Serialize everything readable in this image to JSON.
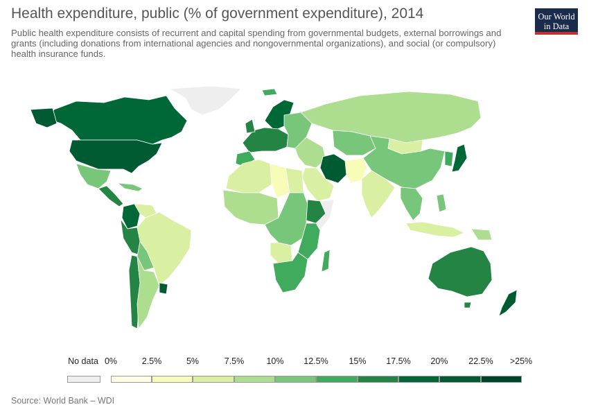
{
  "header": {
    "title": "Health expenditure, public (% of government expenditure), 2014",
    "subtitle": "Public health expenditure consists of recurrent and capital spending from governmental budgets, external borrowings and grants (including donations from international agencies and nongovernmental organizations), and social (or compulsory) health insurance funds."
  },
  "logo": {
    "line1": "Our World",
    "line2": "in Data"
  },
  "legend": {
    "no_data_label": "No data",
    "no_data_color": "#eeeeee",
    "bins": [
      {
        "label": "0%",
        "color": "#ffffe5"
      },
      {
        "label": "2.5%",
        "color": "#f7fcb9"
      },
      {
        "label": "5%",
        "color": "#d9f0a3"
      },
      {
        "label": "7.5%",
        "color": "#addd8e"
      },
      {
        "label": "10%",
        "color": "#78c679"
      },
      {
        "label": "12.5%",
        "color": "#41ab5d"
      },
      {
        "label": "15%",
        "color": "#238443"
      },
      {
        "label": "17.5%",
        "color": "#006837"
      },
      {
        "label": "20%",
        "color": "#005a32"
      },
      {
        "label": "22.5%",
        "color": "#004529"
      },
      {
        "label": ">25%",
        "color": ""
      }
    ]
  },
  "regions": [
    {
      "name": "Greenland",
      "color": "#eeeeee"
    },
    {
      "name": "Canada",
      "color": "#006837"
    },
    {
      "name": "United States",
      "color": "#005a32"
    },
    {
      "name": "Mexico",
      "color": "#78c679"
    },
    {
      "name": "Central America",
      "color": "#238443"
    },
    {
      "name": "Caribbean",
      "color": "#78c679"
    },
    {
      "name": "Colombia",
      "color": "#006837"
    },
    {
      "name": "Venezuela",
      "color": "#d9f0a3"
    },
    {
      "name": "Brazil",
      "color": "#d9f0a3"
    },
    {
      "name": "Peru",
      "color": "#238443"
    },
    {
      "name": "Bolivia",
      "color": "#78c679"
    },
    {
      "name": "Argentina",
      "color": "#addd8e"
    },
    {
      "name": "Chile",
      "color": "#238443"
    },
    {
      "name": "Uruguay",
      "color": "#005a32"
    },
    {
      "name": "Iceland",
      "color": "#41ab5d"
    },
    {
      "name": "Scandinavia",
      "color": "#006837"
    },
    {
      "name": "Western Europe",
      "color": "#238443"
    },
    {
      "name": "Iberia",
      "color": "#41ab5d"
    },
    {
      "name": "Eastern Europe",
      "color": "#78c679"
    },
    {
      "name": "Russia",
      "color": "#addd8e"
    },
    {
      "name": "Kazakhstan",
      "color": "#78c679"
    },
    {
      "name": "Mongolia",
      "color": "#d9f0a3"
    },
    {
      "name": "China",
      "color": "#78c679"
    },
    {
      "name": "Korea",
      "color": "#41ab5d"
    },
    {
      "name": "Japan",
      "color": "#006837"
    },
    {
      "name": "Iran",
      "color": "#005a32"
    },
    {
      "name": "Middle East",
      "color": "#addd8e"
    },
    {
      "name": "Saudi Arabia",
      "color": "#d9f0a3"
    },
    {
      "name": "Pakistan",
      "color": "#f7fcb9"
    },
    {
      "name": "India",
      "color": "#d9f0a3"
    },
    {
      "name": "Southeast Asia",
      "color": "#78c679"
    },
    {
      "name": "Indonesia",
      "color": "#d9f0a3"
    },
    {
      "name": "Philippines",
      "color": "#78c679"
    },
    {
      "name": "Papua New Guinea",
      "color": "#addd8e"
    },
    {
      "name": "North Africa",
      "color": "#d9f0a3"
    },
    {
      "name": "Libya",
      "color": "#f7fcb9"
    },
    {
      "name": "Egypt",
      "color": "#d9f0a3"
    },
    {
      "name": "West Africa",
      "color": "#addd8e"
    },
    {
      "name": "Central Africa",
      "color": "#78c679"
    },
    {
      "name": "Ethiopia",
      "color": "#238443"
    },
    {
      "name": "Somalia",
      "color": "#eeeeee"
    },
    {
      "name": "East Africa",
      "color": "#41ab5d"
    },
    {
      "name": "Angola",
      "color": "#d9f0a3"
    },
    {
      "name": "Southern Africa",
      "color": "#41ab5d"
    },
    {
      "name": "Madagascar",
      "color": "#41ab5d"
    },
    {
      "name": "Australia",
      "color": "#238443"
    },
    {
      "name": "New Zealand",
      "color": "#005a32"
    }
  ],
  "source": "Source: World Bank – WDI"
}
